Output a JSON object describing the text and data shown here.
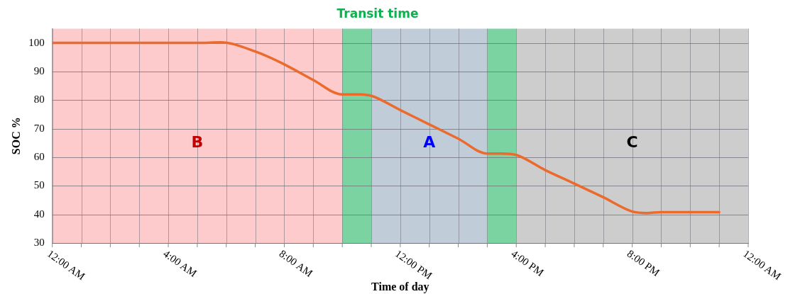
{
  "chart_data": {
    "type": "line",
    "title": "Transit time",
    "xlabel": "Time of day",
    "ylabel": "SOC %",
    "x": [
      0,
      1,
      2,
      3,
      4,
      5,
      5.8,
      7,
      8,
      9,
      10,
      10.5,
      11,
      12,
      13,
      14,
      15,
      15.5,
      16,
      17,
      18,
      19,
      20,
      20.5,
      21,
      22,
      23
    ],
    "series": [
      {
        "color": "#eb6a2c",
        "values": [
          100,
          100,
          100,
          100,
          100,
          100,
          100.2,
          97,
          92.5,
          87,
          82,
          82,
          81.5,
          76.5,
          71.5,
          66.5,
          61.3,
          61.3,
          60.8,
          55.5,
          50.8,
          46,
          41,
          40.5,
          40.8,
          40.8,
          40.8
        ]
      }
    ],
    "xlim": [
      0,
      24
    ],
    "xticks": [
      {
        "value": 0,
        "label": "12:00 AM"
      },
      {
        "value": 1,
        "label": null
      },
      {
        "value": 2,
        "label": null
      },
      {
        "value": 3,
        "label": null
      },
      {
        "value": 4,
        "label": "4:00 AM"
      },
      {
        "value": 5,
        "label": null
      },
      {
        "value": 6,
        "label": null
      },
      {
        "value": 7,
        "label": null
      },
      {
        "value": 8,
        "label": "8:00 AM"
      },
      {
        "value": 9,
        "label": null
      },
      {
        "value": 10,
        "label": null
      },
      {
        "value": 11,
        "label": null
      },
      {
        "value": 12,
        "label": "12:00 PM"
      },
      {
        "value": 13,
        "label": null
      },
      {
        "value": 14,
        "label": null
      },
      {
        "value": 15,
        "label": null
      },
      {
        "value": 16,
        "label": "4:00 PM"
      },
      {
        "value": 17,
        "label": null
      },
      {
        "value": 18,
        "label": null
      },
      {
        "value": 19,
        "label": null
      },
      {
        "value": 20,
        "label": "8:00 PM"
      },
      {
        "value": 21,
        "label": null
      },
      {
        "value": 22,
        "label": null
      },
      {
        "value": 23,
        "label": null
      },
      {
        "value": 24,
        "label": "12:00 AM"
      }
    ],
    "ylim": [
      30,
      105
    ],
    "yticks": [
      30,
      40,
      50,
      60,
      70,
      80,
      90,
      100
    ],
    "bands": [
      {
        "axis": "x",
        "from": 0,
        "to": 10,
        "label": "B",
        "color": "#fdcbcb"
      },
      {
        "axis": "x",
        "from": 10,
        "to": 11,
        "color": "#7ad3a0"
      },
      {
        "axis": "x",
        "from": 11,
        "to": 15,
        "label": "A",
        "color": "#c0cdd9"
      },
      {
        "axis": "x",
        "from": 15,
        "to": 16,
        "color": "#7ad3a0"
      },
      {
        "axis": "x",
        "from": 16,
        "to": 24,
        "label": "C",
        "color": "#cdcdcd"
      }
    ],
    "grid": true,
    "legend": false,
    "marker": "none",
    "line_style": "solid"
  }
}
